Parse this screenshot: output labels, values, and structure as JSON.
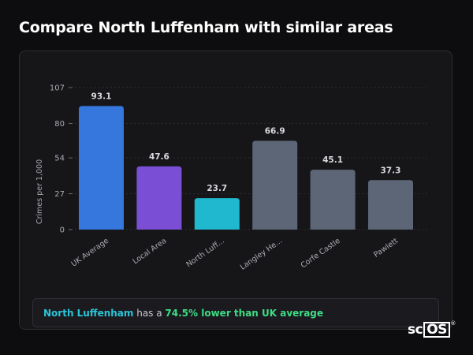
{
  "page": {
    "title": "Compare North Luffenham with similar areas"
  },
  "summary": {
    "area": "North Luffenham",
    "middle": " has a ",
    "stat": "74.5% lower than UK average"
  },
  "logo": {
    "prefix": "sc",
    "boxed": "OS",
    "mark": "®"
  },
  "chart_data": {
    "type": "bar",
    "categories": [
      "UK Average",
      "Local Area",
      "North Luff...",
      "Langley He...",
      "Corfe Castle",
      "Pawlett"
    ],
    "values": [
      93.1,
      47.6,
      23.7,
      66.9,
      45.1,
      37.3
    ],
    "value_labels": [
      "93.1",
      "47.6",
      "23.7",
      "66.9",
      "45.1",
      "37.3"
    ],
    "colors": [
      "#3577dd",
      "#7a4fd6",
      "#1fb8cf",
      "#5d6676",
      "#5d6676",
      "#5d6676"
    ],
    "ylabel": "Crimes per 1,000",
    "xlabel": "",
    "ylim": [
      0,
      107
    ],
    "yticks": [
      0,
      27,
      54,
      80,
      107
    ],
    "grid": "dashed horizontal"
  }
}
